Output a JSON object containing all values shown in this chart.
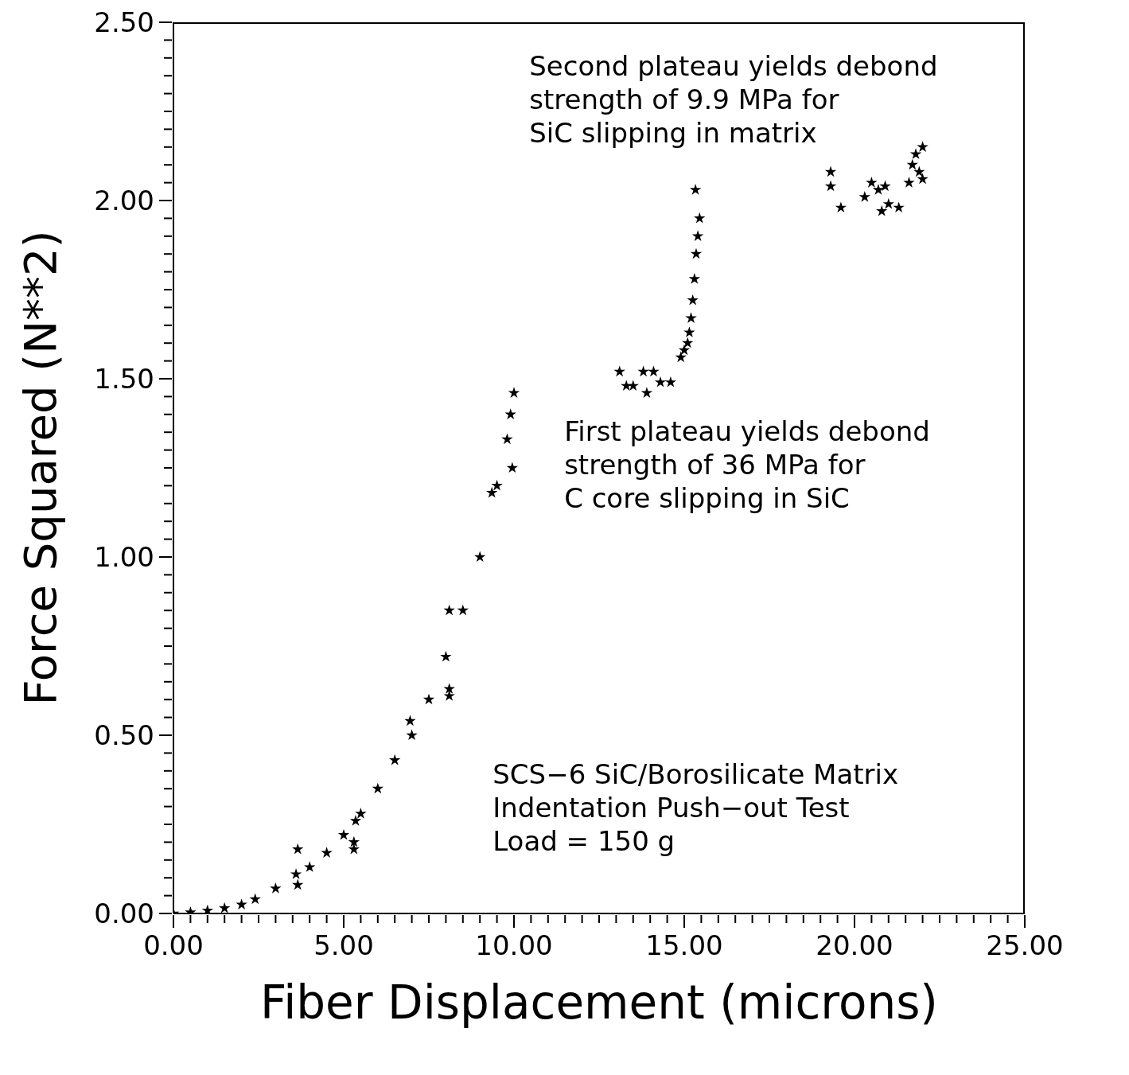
{
  "chart_data": {
    "type": "scatter",
    "xlabel": "Fiber Displacement (microns)",
    "ylabel": "Force Squared (N**2)",
    "annotations": [
      "Second plateau yields debond\nstrength of 9.9 MPa for\nSiC slipping in matrix",
      "First plateau yields debond\nstrength of 36 MPa for\nC core slipping in SiC",
      "SCS−6 SiC/Borosilicate Matrix\nIndentation Push−out Test\nLoad = 150 g"
    ],
    "marker": "star",
    "grid": false,
    "xlim": [
      0,
      25
    ],
    "ylim": [
      0,
      2.5
    ],
    "xticks": [
      {
        "value": 0,
        "label": "0.00"
      },
      {
        "value": 0.5,
        "label": null
      },
      {
        "value": 1,
        "label": null
      },
      {
        "value": 1.5,
        "label": null
      },
      {
        "value": 2,
        "label": null
      },
      {
        "value": 2.5,
        "label": null
      },
      {
        "value": 3,
        "label": null
      },
      {
        "value": 3.5,
        "label": null
      },
      {
        "value": 4,
        "label": null
      },
      {
        "value": 4.5,
        "label": null
      },
      {
        "value": 5,
        "label": "5.00"
      },
      {
        "value": 5.5,
        "label": null
      },
      {
        "value": 6,
        "label": null
      },
      {
        "value": 6.5,
        "label": null
      },
      {
        "value": 7,
        "label": null
      },
      {
        "value": 7.5,
        "label": null
      },
      {
        "value": 8,
        "label": null
      },
      {
        "value": 8.5,
        "label": null
      },
      {
        "value": 9,
        "label": null
      },
      {
        "value": 9.5,
        "label": null
      },
      {
        "value": 10,
        "label": "10.00"
      },
      {
        "value": 10.5,
        "label": null
      },
      {
        "value": 11,
        "label": null
      },
      {
        "value": 11.5,
        "label": null
      },
      {
        "value": 12,
        "label": null
      },
      {
        "value": 12.5,
        "label": null
      },
      {
        "value": 13,
        "label": null
      },
      {
        "value": 13.5,
        "label": null
      },
      {
        "value": 14,
        "label": null
      },
      {
        "value": 14.5,
        "label": null
      },
      {
        "value": 15,
        "label": "15.00"
      },
      {
        "value": 15.5,
        "label": null
      },
      {
        "value": 16,
        "label": null
      },
      {
        "value": 16.5,
        "label": null
      },
      {
        "value": 17,
        "label": null
      },
      {
        "value": 17.5,
        "label": null
      },
      {
        "value": 18,
        "label": null
      },
      {
        "value": 18.5,
        "label": null
      },
      {
        "value": 19,
        "label": null
      },
      {
        "value": 19.5,
        "label": null
      },
      {
        "value": 20,
        "label": "20.00"
      },
      {
        "value": 20.5,
        "label": null
      },
      {
        "value": 21,
        "label": null
      },
      {
        "value": 21.5,
        "label": null
      },
      {
        "value": 22,
        "label": null
      },
      {
        "value": 22.5,
        "label": null
      },
      {
        "value": 23,
        "label": null
      },
      {
        "value": 23.5,
        "label": null
      },
      {
        "value": 24,
        "label": null
      },
      {
        "value": 24.5,
        "label": null
      },
      {
        "value": 25,
        "label": "25.00"
      }
    ],
    "yticks": [
      {
        "value": 0,
        "label": "0.00"
      },
      {
        "value": 0.05,
        "label": null
      },
      {
        "value": 0.1,
        "label": null
      },
      {
        "value": 0.15,
        "label": null
      },
      {
        "value": 0.2,
        "label": null
      },
      {
        "value": 0.25,
        "label": null
      },
      {
        "value": 0.3,
        "label": null
      },
      {
        "value": 0.35,
        "label": null
      },
      {
        "value": 0.4,
        "label": null
      },
      {
        "value": 0.45,
        "label": null
      },
      {
        "value": 0.5,
        "label": "0.50"
      },
      {
        "value": 0.55,
        "label": null
      },
      {
        "value": 0.6,
        "label": null
      },
      {
        "value": 0.65,
        "label": null
      },
      {
        "value": 0.7,
        "label": null
      },
      {
        "value": 0.75,
        "label": null
      },
      {
        "value": 0.8,
        "label": null
      },
      {
        "value": 0.85,
        "label": null
      },
      {
        "value": 0.9,
        "label": null
      },
      {
        "value": 0.95,
        "label": null
      },
      {
        "value": 1,
        "label": "1.00"
      },
      {
        "value": 1.05,
        "label": null
      },
      {
        "value": 1.1,
        "label": null
      },
      {
        "value": 1.15,
        "label": null
      },
      {
        "value": 1.2,
        "label": null
      },
      {
        "value": 1.25,
        "label": null
      },
      {
        "value": 1.3,
        "label": null
      },
      {
        "value": 1.35,
        "label": null
      },
      {
        "value": 1.4,
        "label": null
      },
      {
        "value": 1.45,
        "label": null
      },
      {
        "value": 1.5,
        "label": "1.50"
      },
      {
        "value": 1.55,
        "label": null
      },
      {
        "value": 1.6,
        "label": null
      },
      {
        "value": 1.65,
        "label": null
      },
      {
        "value": 1.7,
        "label": null
      },
      {
        "value": 1.75,
        "label": null
      },
      {
        "value": 1.8,
        "label": null
      },
      {
        "value": 1.85,
        "label": null
      },
      {
        "value": 1.9,
        "label": null
      },
      {
        "value": 1.95,
        "label": null
      },
      {
        "value": 2,
        "label": "2.00"
      },
      {
        "value": 2.05,
        "label": null
      },
      {
        "value": 2.1,
        "label": null
      },
      {
        "value": 2.15,
        "label": null
      },
      {
        "value": 2.2,
        "label": null
      },
      {
        "value": 2.25,
        "label": null
      },
      {
        "value": 2.3,
        "label": null
      },
      {
        "value": 2.35,
        "label": null
      },
      {
        "value": 2.4,
        "label": null
      },
      {
        "value": 2.45,
        "label": null
      },
      {
        "value": 2.5,
        "label": "2.50"
      }
    ],
    "series": [
      {
        "color": "#000000",
        "x": [
          0,
          0.5,
          1,
          1.5,
          2,
          2.4,
          3,
          3.6,
          4,
          4.5,
          5,
          5.35,
          5.5,
          6,
          6.5,
          7,
          7.5,
          8,
          8.5,
          9,
          9.5,
          9.8,
          9.9,
          10,
          3.65,
          3.65,
          5.3,
          5.3,
          6.95,
          8.1,
          8.1,
          8.1,
          9.35,
          9.95,
          13.1,
          13.3,
          13.5,
          13.8,
          13.9,
          14.1,
          14.3,
          14.6,
          14.9,
          15.0,
          15.1,
          15.15,
          15.2,
          15.25,
          15.3,
          15.35,
          15.4,
          15.45,
          15.33,
          19.3,
          19.3,
          19.6,
          20.3,
          20.5,
          20.7,
          20.8,
          20.9,
          21.0,
          21.3,
          21.6,
          21.7,
          21.8,
          21.9,
          22.0,
          22.0
        ],
        "values": [
          0,
          0.003,
          0.008,
          0.015,
          0.025,
          0.04,
          0.07,
          0.11,
          0.13,
          0.17,
          0.22,
          0.26,
          0.28,
          0.35,
          0.43,
          0.5,
          0.6,
          0.72,
          0.85,
          1.0,
          1.2,
          1.33,
          1.4,
          1.46,
          0.18,
          0.08,
          0.18,
          0.2,
          0.54,
          0.85,
          0.61,
          0.63,
          1.18,
          1.25,
          1.52,
          1.48,
          1.48,
          1.52,
          1.46,
          1.52,
          1.49,
          1.49,
          1.56,
          1.58,
          1.6,
          1.63,
          1.67,
          1.72,
          1.78,
          1.85,
          1.9,
          1.95,
          2.03,
          2.08,
          2.04,
          1.98,
          2.01,
          2.05,
          2.03,
          1.97,
          2.04,
          1.99,
          1.98,
          2.05,
          2.1,
          2.13,
          2.08,
          2.15,
          2.06
        ]
      }
    ]
  }
}
